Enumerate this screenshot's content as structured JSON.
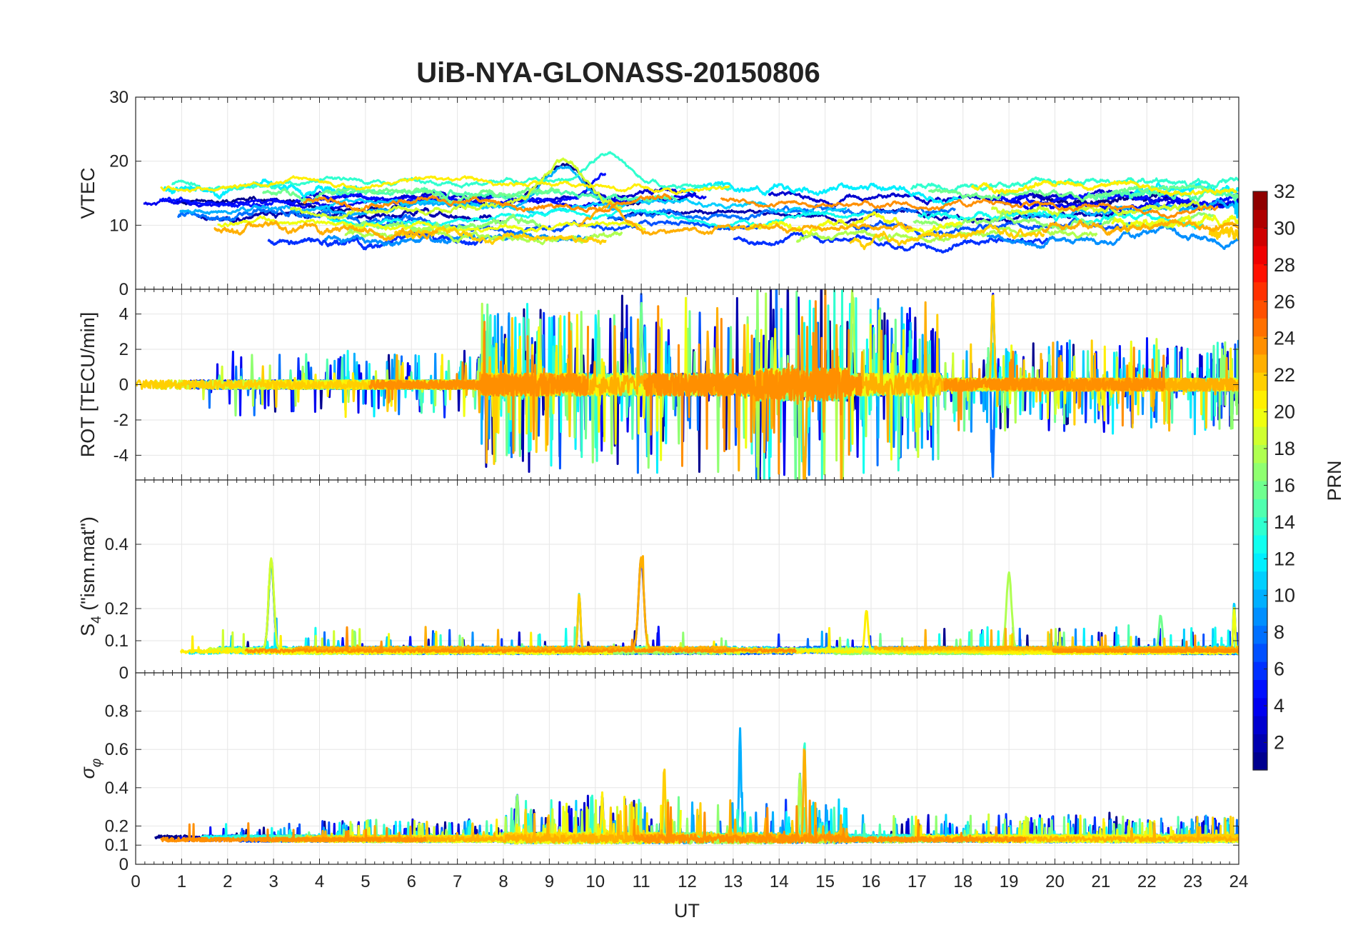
{
  "chart_data": {
    "type": "line",
    "title": "UiB-NYA-GLONASS-20150806",
    "xlabel": "UT",
    "xlim": [
      0,
      24
    ],
    "x_ticks": [
      "0",
      "1",
      "2",
      "3",
      "4",
      "5",
      "6",
      "7",
      "8",
      "9",
      "10",
      "11",
      "12",
      "13",
      "14",
      "15",
      "16",
      "17",
      "18",
      "19",
      "20",
      "21",
      "22",
      "23",
      "24"
    ],
    "grid": true,
    "panels": [
      {
        "id": "vtec",
        "ylabel": "VTEC",
        "ylim": [
          0,
          30
        ],
        "y_ticks": [
          0,
          10,
          20,
          30
        ],
        "y_tick_labels": [
          "0",
          "10",
          "20",
          "30"
        ],
        "base": 12,
        "spread": 4.5,
        "noise": 0.35,
        "spike_rate": 0.0,
        "spike_amp": 0,
        "kind": "smooth",
        "features": [
          {
            "x": 9.3,
            "width": 0.7,
            "value": 7
          },
          {
            "x": 10.3,
            "width": 0.5,
            "value": 4
          },
          {
            "x": 14.2,
            "width": 0.3,
            "value": -2
          }
        ]
      },
      {
        "id": "rot",
        "ylabel": "ROT [TECU/min]",
        "ylim": [
          -5.4,
          5.4
        ],
        "y_ticks": [
          -4,
          -2,
          0,
          2,
          4
        ],
        "y_tick_labels": [
          "-4",
          "-2",
          "0",
          "2",
          "4"
        ],
        "base": 0,
        "spread": 0.1,
        "noise": 0.35,
        "spike_rate": 0.03,
        "spike_amp": 2.5,
        "kind": "noise",
        "activity": [
          {
            "x0": 0,
            "x1": 7.5,
            "factor": 0.7
          },
          {
            "x0": 7.5,
            "x1": 17.5,
            "factor": 1.8
          },
          {
            "x0": 13.5,
            "x1": 15.5,
            "factor": 2.6
          },
          {
            "x0": 17.5,
            "x1": 24,
            "factor": 1.0
          }
        ],
        "features": [
          {
            "x": 14.45,
            "width": 0.04,
            "value": 5.2
          },
          {
            "x": 14.55,
            "width": 0.04,
            "value": -5.3
          },
          {
            "x": 15.6,
            "width": 0.04,
            "value": 5.1
          },
          {
            "x": 18.65,
            "width": 0.04,
            "value": 5.0
          },
          {
            "x": 18.65,
            "width": 0.03,
            "value": -5.0
          },
          {
            "x": 14.3,
            "width": 0.03,
            "value": -4.7
          },
          {
            "x": 11.0,
            "width": 0.03,
            "value": 4.6
          }
        ]
      },
      {
        "id": "s4",
        "ylabel": "S_4 (\"ism.mat\")",
        "ylabel_main": "S",
        "ylabel_sub": "4",
        "ylabel_rest": " (\"ism.mat\")",
        "ylim": [
          0,
          0.6
        ],
        "y_ticks": [
          0,
          0.1,
          0.2,
          0.4
        ],
        "y_tick_labels": [
          "0",
          "0.1",
          "0.2",
          "0.4"
        ],
        "base": 0.06,
        "spread": 0.025,
        "noise": 0.01,
        "spike_rate": 0.006,
        "spike_amp": 0.07,
        "kind": "positive",
        "features": [
          {
            "x": 2.95,
            "width": 0.08,
            "value": 0.28
          },
          {
            "x": 11.0,
            "width": 0.08,
            "value": 0.28
          },
          {
            "x": 19.0,
            "width": 0.08,
            "value": 0.24
          },
          {
            "x": 9.65,
            "width": 0.04,
            "value": 0.17
          },
          {
            "x": 1.1,
            "width": 0.04,
            "value": 0.15
          },
          {
            "x": 15.9,
            "width": 0.05,
            "value": 0.13
          },
          {
            "x": 22.3,
            "width": 0.05,
            "value": 0.11
          },
          {
            "x": 23.9,
            "width": 0.03,
            "value": 0.14
          }
        ]
      },
      {
        "id": "sigma_phi",
        "ylabel": "σ_φ",
        "ylabel_main": "σ",
        "ylabel_sub": "φ",
        "ylim": [
          0,
          1
        ],
        "y_ticks": [
          0,
          0.1,
          0.2,
          0.4,
          0.6,
          0.8
        ],
        "y_tick_labels": [
          "0",
          "0.1",
          "0.2",
          "0.4",
          "0.6",
          "0.8"
        ],
        "base": 0.12,
        "spread": 0.03,
        "noise": 0.025,
        "spike_rate": 0.02,
        "spike_amp": 0.12,
        "kind": "positive",
        "activity": [
          {
            "x0": 0,
            "x1": 8,
            "factor": 0.8
          },
          {
            "x0": 8,
            "x1": 15.5,
            "factor": 1.7
          },
          {
            "x0": 15.5,
            "x1": 24,
            "factor": 1.0
          }
        ],
        "features": [
          {
            "x": 13.15,
            "width": 0.03,
            "value": 0.55
          },
          {
            "x": 14.55,
            "width": 0.03,
            "value": 0.5
          },
          {
            "x": 14.45,
            "width": 0.03,
            "value": 0.35
          },
          {
            "x": 11.5,
            "width": 0.03,
            "value": 0.35
          },
          {
            "x": 8.3,
            "width": 0.03,
            "value": 0.25
          },
          {
            "x": 10.15,
            "width": 0.03,
            "value": 0.22
          }
        ]
      }
    ],
    "series_prns": [
      1,
      2,
      3,
      4,
      5,
      6,
      7,
      8,
      9,
      10,
      11,
      12,
      13,
      14,
      15,
      16,
      17,
      18,
      19,
      20,
      21,
      22,
      23,
      24
    ],
    "colorbar": {
      "label": "PRN",
      "range": [
        1,
        32
      ],
      "ticks": [
        2,
        4,
        6,
        8,
        10,
        12,
        14,
        16,
        18,
        20,
        22,
        24,
        26,
        28,
        30,
        32
      ],
      "tick_labels": [
        "2",
        "4",
        "6",
        "8",
        "10",
        "12",
        "14",
        "16",
        "18",
        "20",
        "22",
        "24",
        "26",
        "28",
        "30",
        "32"
      ],
      "colormap": "jet",
      "levels": 32,
      "position": "right"
    }
  }
}
